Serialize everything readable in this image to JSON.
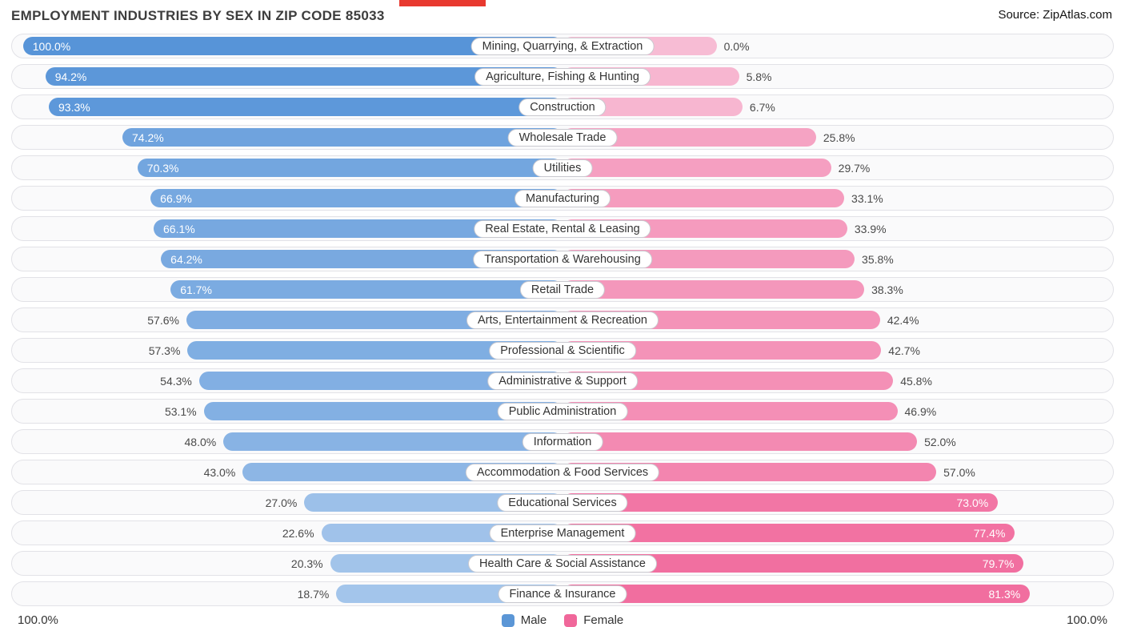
{
  "page": {
    "source": "Source: ZipAtlas.com"
  },
  "colors": {
    "male_low": "#b5d0ef",
    "male_high": "#5794d8",
    "female_low": "#f7bcd4",
    "female_high": "#f05c93",
    "legend_male": "#5b96d6",
    "legend_female": "#f0679a"
  },
  "chart_data": {
    "type": "bar",
    "variant": "diverging-horizontal-pyramid",
    "title": "EMPLOYMENT INDUSTRIES BY SEX IN ZIP CODE 85033",
    "categories": [
      "Mining, Quarrying, & Extraction",
      "Agriculture, Fishing & Hunting",
      "Construction",
      "Wholesale Trade",
      "Utilities",
      "Manufacturing",
      "Real Estate, Rental & Leasing",
      "Transportation & Warehousing",
      "Retail Trade",
      "Arts, Entertainment & Recreation",
      "Professional & Scientific",
      "Administrative & Support",
      "Public Administration",
      "Information",
      "Accommodation & Food Services",
      "Educational Services",
      "Enterprise Management",
      "Health Care & Social Assistance",
      "Finance & Insurance"
    ],
    "series": [
      {
        "name": "Male",
        "values": [
          100.0,
          94.2,
          93.3,
          74.2,
          70.3,
          66.9,
          66.1,
          64.2,
          61.7,
          57.6,
          57.3,
          54.3,
          53.1,
          48.0,
          43.0,
          27.0,
          22.6,
          20.3,
          18.7
        ]
      },
      {
        "name": "Female",
        "values": [
          0.0,
          5.8,
          6.7,
          25.8,
          29.7,
          33.1,
          33.9,
          35.8,
          38.3,
          42.4,
          42.7,
          45.8,
          46.9,
          52.0,
          57.0,
          73.0,
          77.4,
          79.7,
          81.3
        ]
      }
    ],
    "value_format": "one_decimal_percent",
    "x_axis": {
      "left_label": "100.0%",
      "right_label": "100.0%",
      "min": 0,
      "max": 100
    },
    "legend": {
      "position": "bottom-center",
      "entries": [
        "Male",
        "Female"
      ]
    },
    "grid": false
  }
}
